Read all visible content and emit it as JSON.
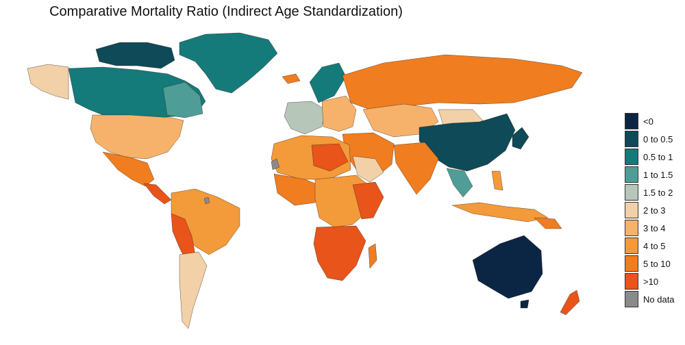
{
  "title": "Comparative Mortality Ratio (Indirect Age Standardization)",
  "legend": [
    {
      "label": "<0",
      "color": "#0b2545"
    },
    {
      "label": "0 to 0.5",
      "color": "#0e4a57"
    },
    {
      "label": "0.5 to 1",
      "color": "#147a7a"
    },
    {
      "label": "1 to 1.5",
      "color": "#4f9d97"
    },
    {
      "label": "1.5 to 2",
      "color": "#b6c6b8"
    },
    {
      "label": "2 to 3",
      "color": "#f2d0a8"
    },
    {
      "label": "3 to 4",
      "color": "#f6b26b"
    },
    {
      "label": "4 to 5",
      "color": "#f39a3a"
    },
    {
      "label": "5 to 10",
      "color": "#f07d1f"
    },
    {
      "label": ">10",
      "color": "#e8541a"
    },
    {
      "label": "No data",
      "color": "#8a8a8a"
    }
  ]
}
